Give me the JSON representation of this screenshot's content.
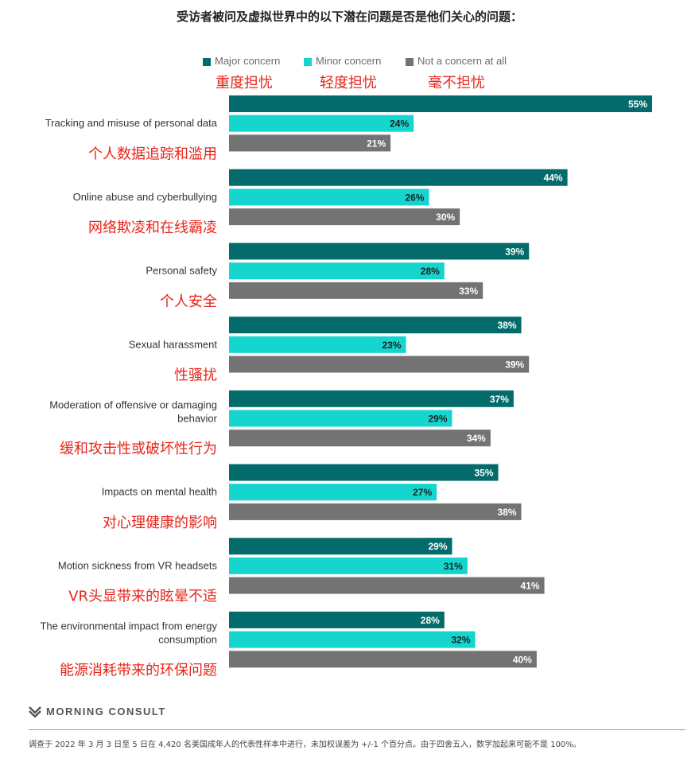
{
  "title": "受访者被问及虚拟世界中的以下潜在问题是否是他们关心的问题：",
  "legend": {
    "items": [
      {
        "label": "Major concern",
        "label_cn": "重度担忧",
        "color": "#036b6b"
      },
      {
        "label": "Minor concern",
        "label_cn": "轻度担忧",
        "color": "#14d6cf"
      },
      {
        "label": "Not a concern at all",
        "label_cn": "毫不担忧",
        "color": "#737373"
      }
    ]
  },
  "chart_data": {
    "type": "bar",
    "orientation": "horizontal",
    "categories": [
      {
        "label_lines": [
          "Tracking and misuse of personal data"
        ],
        "label_cn": "个人数据追踪和滥用"
      },
      {
        "label_lines": [
          "Online abuse and cyberbullying"
        ],
        "label_cn": "网络欺凌和在线霸凌"
      },
      {
        "label_lines": [
          "Personal safety"
        ],
        "label_cn": "个人安全"
      },
      {
        "label_lines": [
          "Sexual harassment"
        ],
        "label_cn": "性骚扰"
      },
      {
        "label_lines": [
          "Moderation of offensive or damaging",
          "behavior"
        ],
        "label_cn": "缓和攻击性或破坏性行为"
      },
      {
        "label_lines": [
          "Impacts on mental health"
        ],
        "label_cn": "对心理健康的影响"
      },
      {
        "label_lines": [
          "Motion sickness from VR headsets"
        ],
        "label_cn": "VR头显带来的眩晕不适"
      },
      {
        "label_lines": [
          "The environmental impact from energy",
          "consumption"
        ],
        "label_cn": "能源消耗带来的环保问题"
      }
    ],
    "series": [
      {
        "name": "Major concern",
        "color": "#036b6b",
        "label_color": "#ffffff",
        "values": [
          55,
          44,
          39,
          38,
          37,
          35,
          29,
          28
        ]
      },
      {
        "name": "Minor concern",
        "color": "#14d6cf",
        "label_color": "#1f1f1f",
        "values": [
          24,
          26,
          28,
          23,
          29,
          27,
          31,
          32
        ]
      },
      {
        "name": "Not a concern at all",
        "color": "#737373",
        "label_color": "#ffffff",
        "values": [
          21,
          30,
          33,
          39,
          34,
          38,
          41,
          40
        ]
      }
    ],
    "value_suffix": "%",
    "xlim": [
      0,
      55
    ],
    "grid": false,
    "legend_position": "top"
  },
  "brand": "MORNING CONSULT",
  "footnote": "调查于 2022 年 3 月 3 日至 5 日在 4,420 名美国成年人的代表性样本中进行，未加权误差为 +/-1 个百分点。由于四舍五入，数字加起来可能不是 100%。"
}
